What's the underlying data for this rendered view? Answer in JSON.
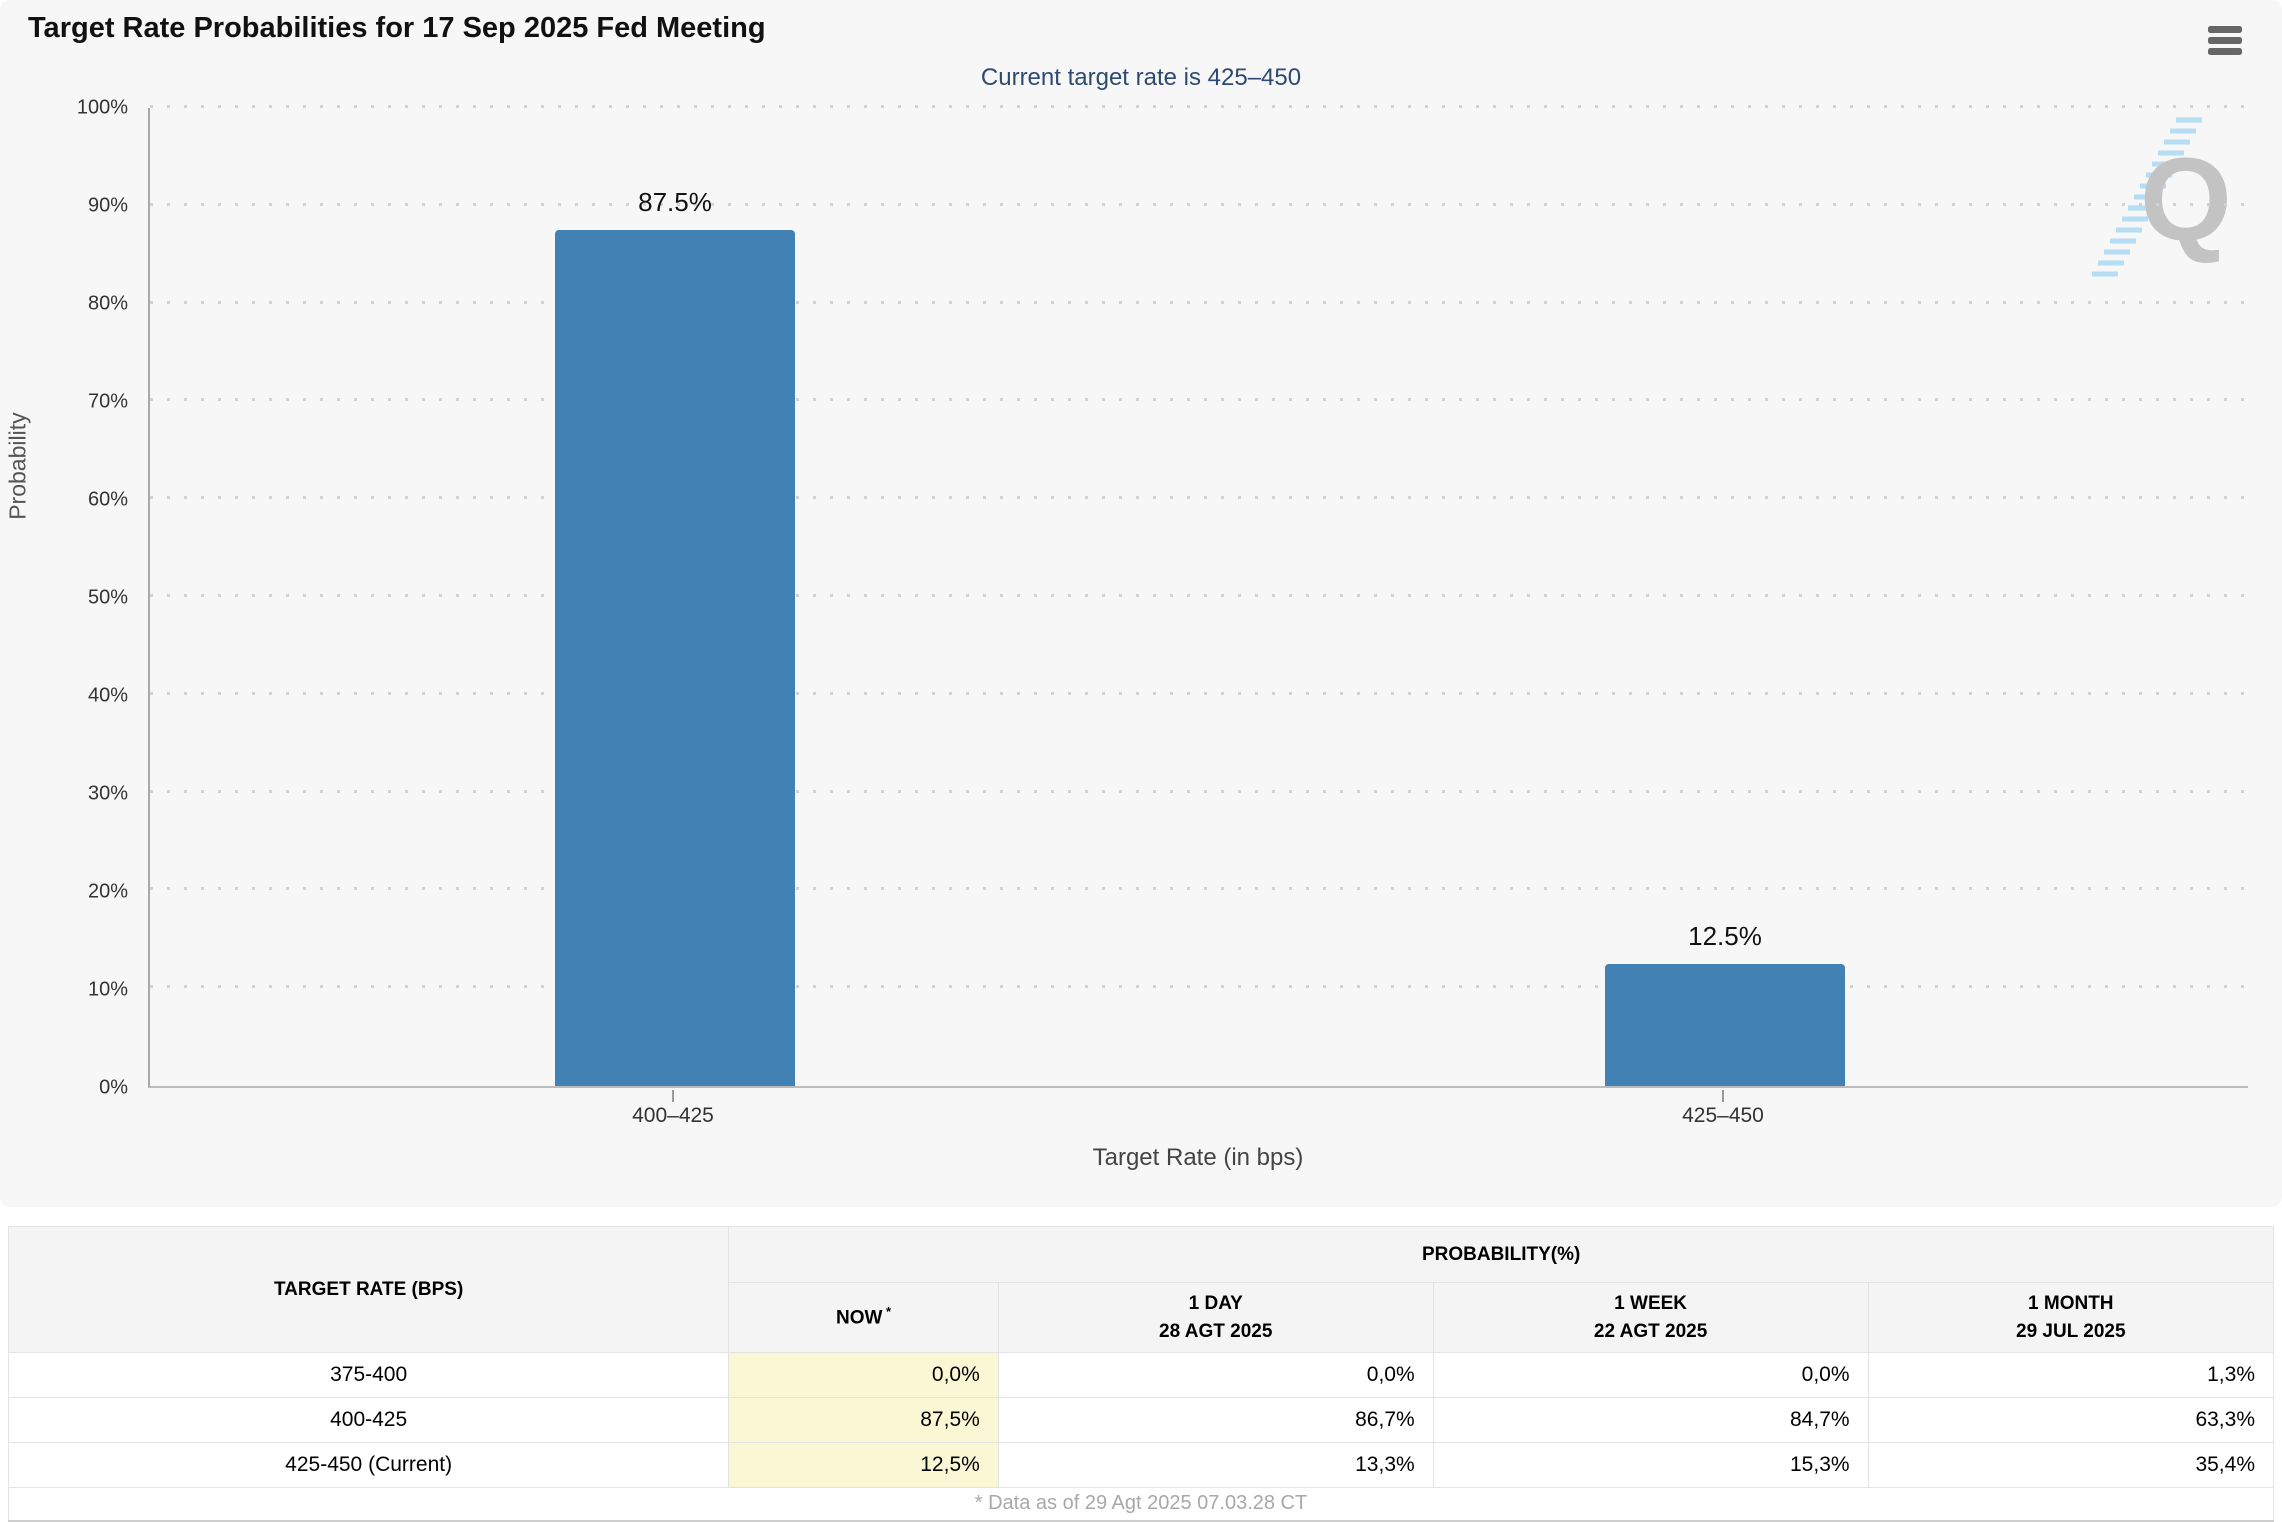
{
  "header": {
    "title": "Target Rate Probabilities for 17 Sep 2025 Fed Meeting",
    "subtitle": "Current target rate is 425–450"
  },
  "colors": {
    "bar": "#4181b4",
    "subtitle_text": "#2e4a70",
    "panel_bg": "#f7f7f7",
    "now_column_highlight": "#faf7d5",
    "watermark_gray": "#c3c3c3",
    "watermark_blue": "#b5def5"
  },
  "chart_data": {
    "type": "bar",
    "title": "Target Rate Probabilities for 17 Sep 2025 Fed Meeting",
    "subtitle": "Current target rate is 425–450",
    "categories": [
      "400–425",
      "425–450"
    ],
    "values": [
      87.5,
      12.5
    ],
    "bar_labels": [
      "87.5%",
      "12.5%"
    ],
    "xlabel": "Target Rate (in bps)",
    "ylabel": "Probability",
    "ylim": [
      0,
      100
    ],
    "ytick_step": 10,
    "ytick_suffix": "%",
    "grid": "dotted horizontal gridlines, solid x/y axis",
    "legend": "none"
  },
  "watermark": {
    "letter": "Q"
  },
  "table": {
    "col1_header": "TARGET RATE (BPS)",
    "group_header": "PROBABILITY(%)",
    "columns": [
      {
        "label": "NOW",
        "sup": "*",
        "sub": ""
      },
      {
        "label": "1 DAY",
        "sup": "",
        "sub": "28 AGT 2025"
      },
      {
        "label": "1 WEEK",
        "sup": "",
        "sub": "22 AGT 2025"
      },
      {
        "label": "1 MONTH",
        "sup": "",
        "sub": "29 JUL 2025"
      }
    ],
    "rows": [
      {
        "rate": "375-400",
        "values": [
          "0,0%",
          "0,0%",
          "0,0%",
          "1,3%"
        ]
      },
      {
        "rate": "400-425",
        "values": [
          "87,5%",
          "86,7%",
          "84,7%",
          "63,3%"
        ]
      },
      {
        "rate": "425-450 (Current)",
        "values": [
          "12,5%",
          "13,3%",
          "15,3%",
          "35,4%"
        ]
      }
    ],
    "footnote": "* Data as of 29 Agt 2025 07.03.28 CT"
  }
}
